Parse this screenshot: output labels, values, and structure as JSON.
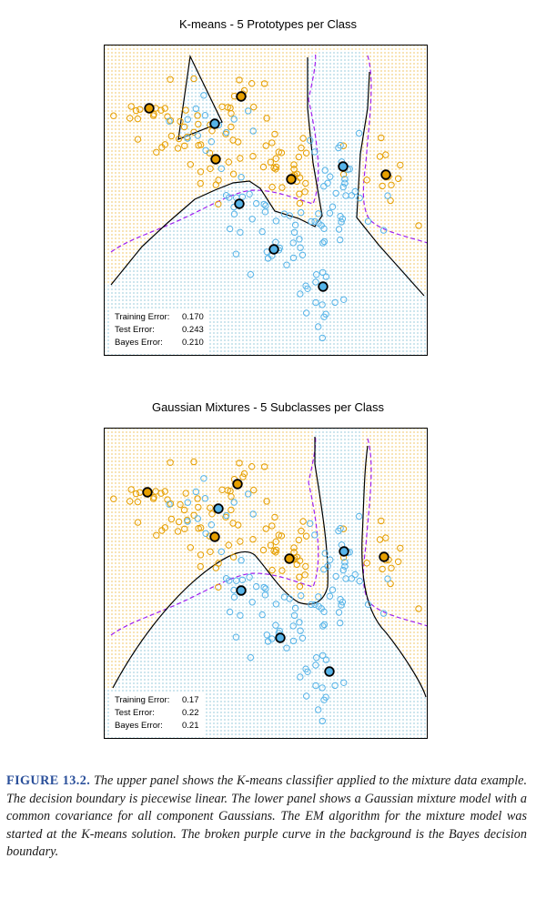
{
  "panels": [
    {
      "title": "K-means - 5 Prototypes per Class",
      "errors": [
        {
          "label": "Training Error:",
          "value": "0.170"
        },
        {
          "label": "Test Error:",
          "value": "0.243"
        },
        {
          "label": "Bayes Error:",
          "value": "0.210"
        }
      ]
    },
    {
      "title": "Gaussian Mixtures - 5 Subclasses per Class",
      "errors": [
        {
          "label": "Training Error:",
          "value": "0.17"
        },
        {
          "label": "Test Error:",
          "value": "0.22"
        },
        {
          "label": "Bayes Error:",
          "value": "0.21"
        }
      ]
    }
  ],
  "caption": {
    "label": "FIGURE 13.2.",
    "text": "The upper panel shows the K-means classifier applied to the mixture data example. The decision boundary is piecewise linear. The lower panel shows a Gaussian mixture model with a common covariance for all component Gaussians. The EM algorithm for the mixture model was started at the K-means solution. The broken purple curve in the background is the Bayes decision boundary."
  },
  "colors": {
    "orange_class": "#E69F00",
    "blue_class": "#56B4E9",
    "bayes_boundary": "#A020F0",
    "model_boundary": "#000000"
  }
}
